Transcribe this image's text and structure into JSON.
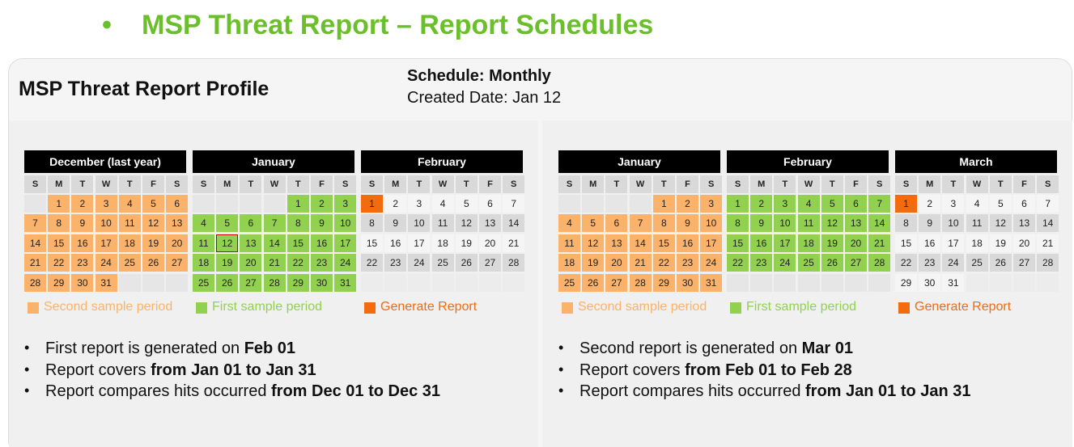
{
  "title": "MSP Threat Report – Report Schedules",
  "profile": {
    "name": "MSP Threat Report Profile",
    "schedule": "Schedule: Monthly",
    "created": "Created Date: Jan 12"
  },
  "weekdays": [
    "S",
    "M",
    "T",
    "W",
    "T",
    "F",
    "S"
  ],
  "legend": [
    {
      "label": "Second sample period",
      "color": "#fbb26a"
    },
    {
      "label": "First sample period",
      "color": "#92d050"
    },
    {
      "label": "Generate Report",
      "color": "#f26b0e"
    }
  ],
  "panels": [
    {
      "calendars": [
        {
          "title": "December (last year)",
          "fill": "#fbb26a",
          "weeks": [
            [
              null,
              1,
              2,
              3,
              4,
              5,
              6
            ],
            [
              7,
              8,
              9,
              10,
              11,
              12,
              13
            ],
            [
              14,
              15,
              16,
              17,
              18,
              19,
              20
            ],
            [
              21,
              22,
              23,
              24,
              25,
              26,
              27
            ],
            [
              28,
              29,
              30,
              31,
              null,
              null,
              null
            ]
          ]
        },
        {
          "title": "January",
          "fill": "#92d050",
          "outline": 12,
          "weeks": [
            [
              null,
              null,
              null,
              null,
              1,
              2,
              3
            ],
            [
              4,
              5,
              6,
              7,
              8,
              9,
              10
            ],
            [
              11,
              12,
              13,
              14,
              15,
              16,
              17
            ],
            [
              18,
              19,
              20,
              21,
              22,
              23,
              24
            ],
            [
              25,
              26,
              27,
              28,
              29,
              30,
              31
            ]
          ]
        },
        {
          "title": "February",
          "first_fill": "#f26b0e",
          "weeks": [
            [
              1,
              2,
              3,
              4,
              5,
              6,
              7
            ],
            [
              8,
              9,
              10,
              11,
              12,
              13,
              14
            ],
            [
              15,
              16,
              17,
              18,
              19,
              20,
              21
            ],
            [
              22,
              23,
              24,
              25,
              26,
              27,
              28
            ],
            [
              null,
              null,
              null,
              null,
              null,
              null,
              null
            ]
          ]
        }
      ],
      "bullets": [
        {
          "text": "First report is generated on ",
          "bold": "Feb 01"
        },
        {
          "text": "Report covers ",
          "bold": "from Jan 01 to Jan 31"
        },
        {
          "text": "Report compares hits occurred ",
          "bold": "from Dec 01 to Dec 31"
        }
      ]
    },
    {
      "calendars": [
        {
          "title": "January",
          "fill": "#fbb26a",
          "weeks": [
            [
              null,
              null,
              null,
              null,
              1,
              2,
              3
            ],
            [
              4,
              5,
              6,
              7,
              8,
              9,
              10
            ],
            [
              11,
              12,
              13,
              14,
              15,
              16,
              17
            ],
            [
              18,
              19,
              20,
              21,
              22,
              23,
              24
            ],
            [
              25,
              26,
              27,
              28,
              29,
              30,
              31
            ]
          ]
        },
        {
          "title": "February",
          "fill": "#92d050",
          "weeks": [
            [
              1,
              2,
              3,
              4,
              5,
              6,
              7
            ],
            [
              8,
              9,
              10,
              11,
              12,
              13,
              14
            ],
            [
              15,
              16,
              17,
              18,
              19,
              20,
              21
            ],
            [
              22,
              23,
              24,
              25,
              26,
              27,
              28
            ],
            [
              null,
              null,
              null,
              null,
              null,
              null,
              null
            ]
          ]
        },
        {
          "title": "March",
          "first_fill": "#f26b0e",
          "weeks": [
            [
              1,
              2,
              3,
              4,
              5,
              6,
              7
            ],
            [
              8,
              9,
              10,
              11,
              12,
              13,
              14
            ],
            [
              15,
              16,
              17,
              18,
              19,
              20,
              21
            ],
            [
              22,
              23,
              24,
              25,
              26,
              27,
              28
            ],
            [
              29,
              30,
              31,
              null,
              null,
              null,
              null
            ]
          ]
        }
      ],
      "bullets": [
        {
          "text": "Second report is generated on ",
          "bold": "Mar 01"
        },
        {
          "text": "Report covers ",
          "bold": "from Feb 01 to Feb 28"
        },
        {
          "text": "Report compares hits occurred ",
          "bold": "from Jan 01 to Jan 31"
        }
      ]
    }
  ]
}
